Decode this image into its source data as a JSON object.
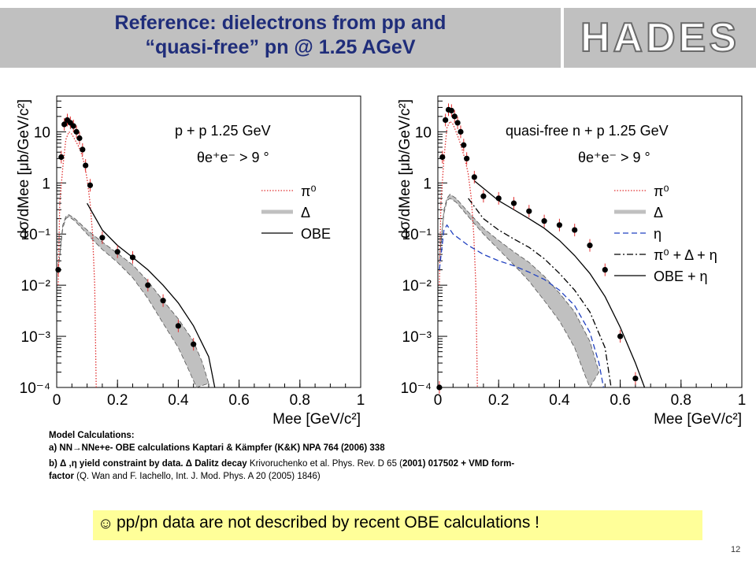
{
  "header": {
    "title_line1": "Reference: dielectrons from pp and",
    "title_line2": "“quasi-free” pn @ 1.25 AGeV",
    "logo": "HADES",
    "colors": {
      "title": "#1f2d7a",
      "bar": "#c0c0c0"
    }
  },
  "chart_data": [
    {
      "type": "line",
      "annotation_line1": "p + p  1.25 GeV",
      "annotation_line2": "θe⁺e⁻ > 9 °",
      "xlabel": "Mee [GeV/c²]",
      "ylabel": "dσ/dMee  [μb/GeV/c²]",
      "xlim": [
        0,
        1
      ],
      "ylim": [
        0.0001,
        50
      ],
      "yscale": "log",
      "x_ticks": [
        "0",
        "0.2",
        "0.4",
        "0.6",
        "0.8",
        "1"
      ],
      "y_ticks": [
        "10",
        "1",
        "10⁻¹",
        "10⁻²",
        "10⁻³",
        "10⁻⁴"
      ],
      "legend": [
        "π⁰",
        "Δ",
        "OBE"
      ],
      "legend_position": "right",
      "series": [
        {
          "name": "π⁰",
          "style": "dotted",
          "color": "#e03030",
          "points": [
            [
              0.005,
              0.01
            ],
            [
              0.01,
              0.4
            ],
            [
              0.02,
              2.0
            ],
            [
              0.03,
              7.0
            ],
            [
              0.04,
              10
            ],
            [
              0.05,
              9
            ],
            [
              0.06,
              7
            ],
            [
              0.07,
              5.5
            ],
            [
              0.08,
              4
            ],
            [
              0.09,
              2.5
            ],
            [
              0.1,
              1.2
            ],
            [
              0.11,
              0.4
            ],
            [
              0.118,
              0.1
            ],
            [
              0.125,
              0.01
            ],
            [
              0.13,
              0.0001
            ]
          ]
        },
        {
          "name": "Δ",
          "style": "band",
          "color": "#c0c0c0",
          "upper": [
            [
              0.005,
              0.02
            ],
            [
              0.02,
              0.15
            ],
            [
              0.03,
              0.22
            ],
            [
              0.04,
              0.24
            ],
            [
              0.06,
              0.2
            ],
            [
              0.1,
              0.12
            ],
            [
              0.15,
              0.07
            ],
            [
              0.2,
              0.042
            ],
            [
              0.25,
              0.025
            ],
            [
              0.3,
              0.012
            ],
            [
              0.35,
              0.005
            ],
            [
              0.4,
              0.0022
            ],
            [
              0.45,
              0.0008
            ],
            [
              0.48,
              0.0003
            ],
            [
              0.5,
              0.00012
            ]
          ],
          "lower": [
            [
              0.005,
              0.02
            ],
            [
              0.02,
              0.13
            ],
            [
              0.03,
              0.2
            ],
            [
              0.04,
              0.22
            ],
            [
              0.06,
              0.18
            ],
            [
              0.1,
              0.1
            ],
            [
              0.15,
              0.05
            ],
            [
              0.2,
              0.028
            ],
            [
              0.25,
              0.014
            ],
            [
              0.3,
              0.0055
            ],
            [
              0.35,
              0.0018
            ],
            [
              0.4,
              0.0006
            ],
            [
              0.43,
              0.00025
            ],
            [
              0.46,
              0.0001
            ]
          ]
        },
        {
          "name": "OBE",
          "style": "solid",
          "color": "#000000",
          "points": [
            [
              0.1,
              0.4
            ],
            [
              0.15,
              0.12
            ],
            [
              0.2,
              0.06
            ],
            [
              0.25,
              0.035
            ],
            [
              0.3,
              0.02
            ],
            [
              0.35,
              0.01
            ],
            [
              0.4,
              0.0045
            ],
            [
              0.45,
              0.0016
            ],
            [
              0.5,
              0.0004
            ],
            [
              0.52,
              0.0001
            ]
          ]
        },
        {
          "name": "data",
          "style": "markers",
          "color": "#000000",
          "points": [
            [
              0.005,
              0.02
            ],
            [
              0.015,
              3.2
            ],
            [
              0.025,
              14
            ],
            [
              0.035,
              17
            ],
            [
              0.045,
              15
            ],
            [
              0.055,
              13
            ],
            [
              0.065,
              10
            ],
            [
              0.075,
              7.5
            ],
            [
              0.085,
              4.5
            ],
            [
              0.095,
              2.2
            ],
            [
              0.11,
              0.9
            ],
            [
              0.15,
              0.085
            ],
            [
              0.2,
              0.045
            ],
            [
              0.25,
              0.035
            ],
            [
              0.3,
              0.01
            ],
            [
              0.35,
              0.005
            ],
            [
              0.4,
              0.0016
            ],
            [
              0.45,
              0.0007
            ]
          ]
        }
      ]
    },
    {
      "type": "line",
      "annotation_line1": "quasi-free n + p  1.25 GeV",
      "annotation_line2": "θe⁺e⁻ > 9 °",
      "xlabel": "Mee [GeV/c²]",
      "ylabel": "dσ/dMee  [μb/GeV/c²]",
      "xlim": [
        0,
        1
      ],
      "ylim": [
        0.0001,
        50
      ],
      "yscale": "log",
      "x_ticks": [
        "0",
        "0.2",
        "0.4",
        "0.6",
        "0.8",
        "1"
      ],
      "y_ticks": [
        "10",
        "1",
        "10⁻¹",
        "10⁻²",
        "10⁻³",
        "10⁻⁴"
      ],
      "legend": [
        "π⁰",
        "Δ",
        "η",
        "π⁰ + Δ + η",
        "OBE + η"
      ],
      "legend_position": "right",
      "series": [
        {
          "name": "π⁰",
          "style": "dotted",
          "color": "#e03030",
          "points": [
            [
              0.005,
              0.01
            ],
            [
              0.01,
              0.4
            ],
            [
              0.02,
              3
            ],
            [
              0.03,
              12
            ],
            [
              0.04,
              16
            ],
            [
              0.05,
              14
            ],
            [
              0.06,
              10
            ],
            [
              0.07,
              7
            ],
            [
              0.08,
              4.5
            ],
            [
              0.09,
              2.8
            ],
            [
              0.1,
              1.5
            ],
            [
              0.11,
              0.5
            ],
            [
              0.118,
              0.1
            ],
            [
              0.125,
              0.01
            ],
            [
              0.13,
              0.0001
            ]
          ]
        },
        {
          "name": "Δ",
          "style": "band",
          "color": "#c0c0c0",
          "upper": [
            [
              0.005,
              0.03
            ],
            [
              0.02,
              0.3
            ],
            [
              0.03,
              0.5
            ],
            [
              0.04,
              0.6
            ],
            [
              0.06,
              0.5
            ],
            [
              0.1,
              0.27
            ],
            [
              0.15,
              0.13
            ],
            [
              0.2,
              0.075
            ],
            [
              0.25,
              0.045
            ],
            [
              0.3,
              0.028
            ],
            [
              0.35,
              0.015
            ],
            [
              0.4,
              0.007
            ],
            [
              0.45,
              0.003
            ],
            [
              0.5,
              0.0008
            ],
            [
              0.53,
              0.0002
            ]
          ],
          "lower": [
            [
              0.005,
              0.03
            ],
            [
              0.02,
              0.25
            ],
            [
              0.03,
              0.45
            ],
            [
              0.04,
              0.5
            ],
            [
              0.06,
              0.42
            ],
            [
              0.1,
              0.22
            ],
            [
              0.15,
              0.1
            ],
            [
              0.2,
              0.05
            ],
            [
              0.25,
              0.025
            ],
            [
              0.3,
              0.012
            ],
            [
              0.35,
              0.005
            ],
            [
              0.4,
              0.002
            ],
            [
              0.45,
              0.0006
            ],
            [
              0.48,
              0.0002
            ],
            [
              0.5,
              0.0001
            ]
          ]
        },
        {
          "name": "η",
          "style": "dashed",
          "color": "#2040c0",
          "points": [
            [
              0.005,
              0.02
            ],
            [
              0.02,
              0.12
            ],
            [
              0.03,
              0.15
            ],
            [
              0.05,
              0.1
            ],
            [
              0.1,
              0.06
            ],
            [
              0.15,
              0.04
            ],
            [
              0.2,
              0.03
            ],
            [
              0.25,
              0.024
            ],
            [
              0.3,
              0.018
            ],
            [
              0.35,
              0.013
            ],
            [
              0.4,
              0.008
            ],
            [
              0.45,
              0.004
            ],
            [
              0.5,
              0.0012
            ],
            [
              0.53,
              0.0003
            ],
            [
              0.545,
              0.0001
            ]
          ]
        },
        {
          "name": "π⁰ + Δ + η",
          "style": "dashdot",
          "color": "#000000",
          "points": [
            [
              0.1,
              0.5
            ],
            [
              0.15,
              0.2
            ],
            [
              0.2,
              0.12
            ],
            [
              0.25,
              0.08
            ],
            [
              0.3,
              0.055
            ],
            [
              0.35,
              0.033
            ],
            [
              0.4,
              0.017
            ],
            [
              0.45,
              0.008
            ],
            [
              0.5,
              0.003
            ],
            [
              0.55,
              0.0006
            ],
            [
              0.57,
              0.0001
            ]
          ]
        },
        {
          "name": "OBE + η",
          "style": "solid",
          "color": "#000000",
          "points": [
            [
              0.12,
              1.1
            ],
            [
              0.2,
              0.45
            ],
            [
              0.25,
              0.3
            ],
            [
              0.3,
              0.2
            ],
            [
              0.35,
              0.13
            ],
            [
              0.4,
              0.075
            ],
            [
              0.45,
              0.038
            ],
            [
              0.5,
              0.017
            ],
            [
              0.55,
              0.006
            ],
            [
              0.6,
              0.0015
            ],
            [
              0.65,
              0.0003
            ],
            [
              0.68,
              0.0001
            ]
          ]
        },
        {
          "name": "data",
          "style": "markers",
          "color": "#000000",
          "points": [
            [
              0.005,
              0.0001
            ],
            [
              0.015,
              3.2
            ],
            [
              0.025,
              17
            ],
            [
              0.035,
              27
            ],
            [
              0.045,
              26
            ],
            [
              0.055,
              20
            ],
            [
              0.065,
              15
            ],
            [
              0.075,
              10
            ],
            [
              0.085,
              5.5
            ],
            [
              0.095,
              3.0
            ],
            [
              0.12,
              1.3
            ],
            [
              0.15,
              0.55
            ],
            [
              0.2,
              0.5
            ],
            [
              0.25,
              0.4
            ],
            [
              0.3,
              0.28
            ],
            [
              0.35,
              0.18
            ],
            [
              0.4,
              0.15
            ],
            [
              0.45,
              0.12
            ],
            [
              0.5,
              0.06
            ],
            [
              0.55,
              0.02
            ],
            [
              0.6,
              0.001
            ],
            [
              0.65,
              0.00015
            ]
          ]
        }
      ]
    }
  ],
  "notes": {
    "heading": "Model Calculations:",
    "line_a": "a) NN→NNe+e- OBE calculations Kaptari & Kämpfer (K&K) NPA 764 (2006) 338",
    "line_b1_bold": "b) Δ ,η yield constraint by data.  Δ Dalitz decay",
    "line_b1_rest": " Krivoruchenko et al. Phys. Rev. D 65 (",
    "line_b1_year": "2001",
    "line_b1_end": ") 017502 + VMD form-",
    "line_b2_bold": "factor",
    "line_b2_rest": " (Q. Wan and F. Iachello, Int. J. Mod. Phys. A 20 (2005) 1846)"
  },
  "conclusion": {
    "icon": "smiley-icon",
    "text": "pp/pn data are not described by recent OBE calculations !",
    "bg_color": "#ffff99"
  },
  "footer": {
    "page_number": "12"
  }
}
